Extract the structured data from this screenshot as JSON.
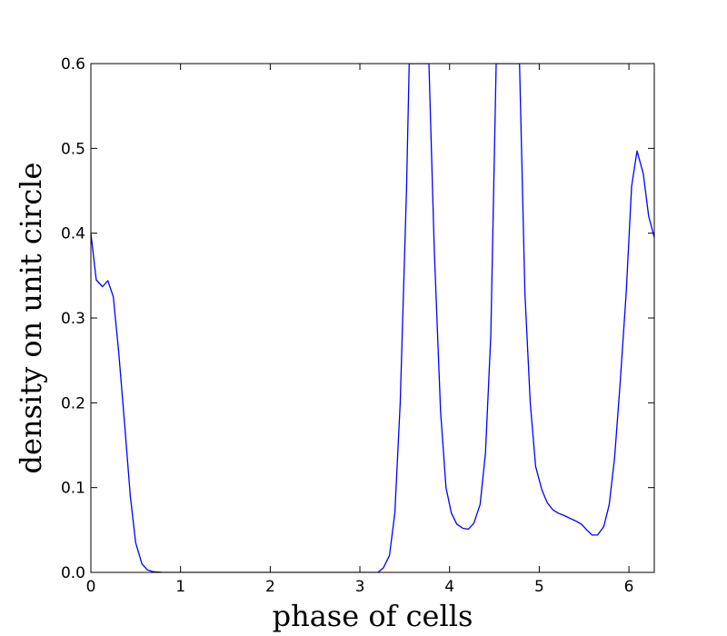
{
  "chart_data": {
    "type": "line",
    "title": "",
    "xlabel": "phase of cells",
    "ylabel": "density on unit circle",
    "xlim": [
      0,
      6.283
    ],
    "ylim": [
      0,
      0.6
    ],
    "xticks": [
      0,
      1,
      2,
      3,
      4,
      5,
      6
    ],
    "xtick_labels": [
      "0",
      "1",
      "2",
      "3",
      "4",
      "5",
      "6"
    ],
    "yticks": [
      0.0,
      0.1,
      0.2,
      0.3,
      0.4,
      0.5,
      0.6
    ],
    "ytick_labels": [
      "0.0",
      "0.1",
      "0.2",
      "0.3",
      "0.4",
      "0.5",
      "0.6"
    ],
    "grid": false,
    "legend": "none",
    "line_color": "#0000ff",
    "series": [
      {
        "x": [
          0.0,
          0.06,
          0.13,
          0.19,
          0.25,
          0.31,
          0.38,
          0.44,
          0.5,
          0.57,
          0.63,
          0.69,
          0.8,
          1.0,
          1.5,
          2.0,
          2.5,
          3.0,
          3.1,
          3.14,
          3.2,
          3.26,
          3.33,
          3.39,
          3.45,
          3.52,
          3.55,
          3.6,
          3.7,
          3.72,
          3.77,
          3.83,
          3.9,
          3.96,
          4.02,
          4.08,
          4.15,
          4.21,
          4.27,
          4.34,
          4.4,
          4.46,
          4.52,
          4.55,
          4.6,
          4.7,
          4.78,
          4.84,
          4.9,
          4.96,
          5.03,
          5.09,
          5.15,
          5.21,
          5.28,
          5.34,
          5.4,
          5.47,
          5.53,
          5.59,
          5.65,
          5.72,
          5.78,
          5.84,
          5.9,
          5.97,
          6.03,
          6.09,
          6.16,
          6.22,
          6.283
        ],
        "y": [
          0.4,
          0.345,
          0.337,
          0.344,
          0.325,
          0.26,
          0.17,
          0.09,
          0.035,
          0.01,
          0.003,
          0.001,
          0.0,
          0.0,
          0.0,
          0.0,
          0.0,
          0.0,
          0.0,
          0.0,
          0.0,
          0.005,
          0.02,
          0.07,
          0.2,
          0.45,
          0.6,
          0.6,
          0.6,
          0.6,
          0.6,
          0.38,
          0.19,
          0.1,
          0.07,
          0.057,
          0.052,
          0.051,
          0.058,
          0.08,
          0.14,
          0.28,
          0.6,
          0.6,
          0.6,
          0.6,
          0.6,
          0.33,
          0.2,
          0.125,
          0.097,
          0.082,
          0.074,
          0.07,
          0.067,
          0.064,
          0.061,
          0.057,
          0.05,
          0.044,
          0.044,
          0.054,
          0.08,
          0.135,
          0.22,
          0.33,
          0.455,
          0.497,
          0.47,
          0.42,
          0.395
        ]
      }
    ]
  }
}
